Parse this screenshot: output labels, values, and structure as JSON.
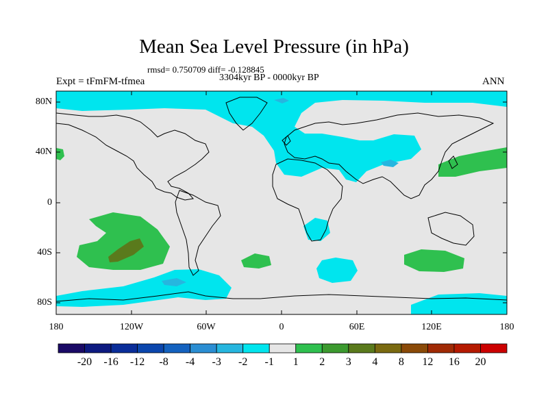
{
  "title": "Mean Sea Level Pressure (in hPa)",
  "stats": "rmsd= 0.750709 diff= -0.128845",
  "period": "3304kyr BP - 0000kyr BP",
  "experiment": "Expt = tFmFM-tfmea",
  "season": "ANN",
  "lat_labels": [
    "80N",
    "40N",
    "0",
    "40S",
    "80S"
  ],
  "lon_labels": [
    "180",
    "120W",
    "60W",
    "0",
    "60E",
    "120E",
    "180"
  ],
  "colorbar": {
    "labels": [
      "-20",
      "-16",
      "-12",
      "-8",
      "-4",
      "-3",
      "-2",
      "-1",
      "1",
      "2",
      "3",
      "4",
      "8",
      "12",
      "16",
      "20"
    ],
    "colors": [
      "#1a0a66",
      "#0d1a80",
      "#0a2d99",
      "#0b46ad",
      "#1462bf",
      "#2b8ed3",
      "#26b6df",
      "#00e5ee",
      "#e6e6e6",
      "#2fc04f",
      "#3c9a2f",
      "#5a7a1c",
      "#7a6a10",
      "#8a4a08",
      "#a02a05",
      "#b51a00",
      "#cc0000"
    ]
  },
  "colors": {
    "background": "#e6e6e6",
    "neg1": "#00e5ee",
    "neg2": "#26b6df",
    "pos1": "#2fc04f",
    "pos3": "#5a7a1c"
  }
}
